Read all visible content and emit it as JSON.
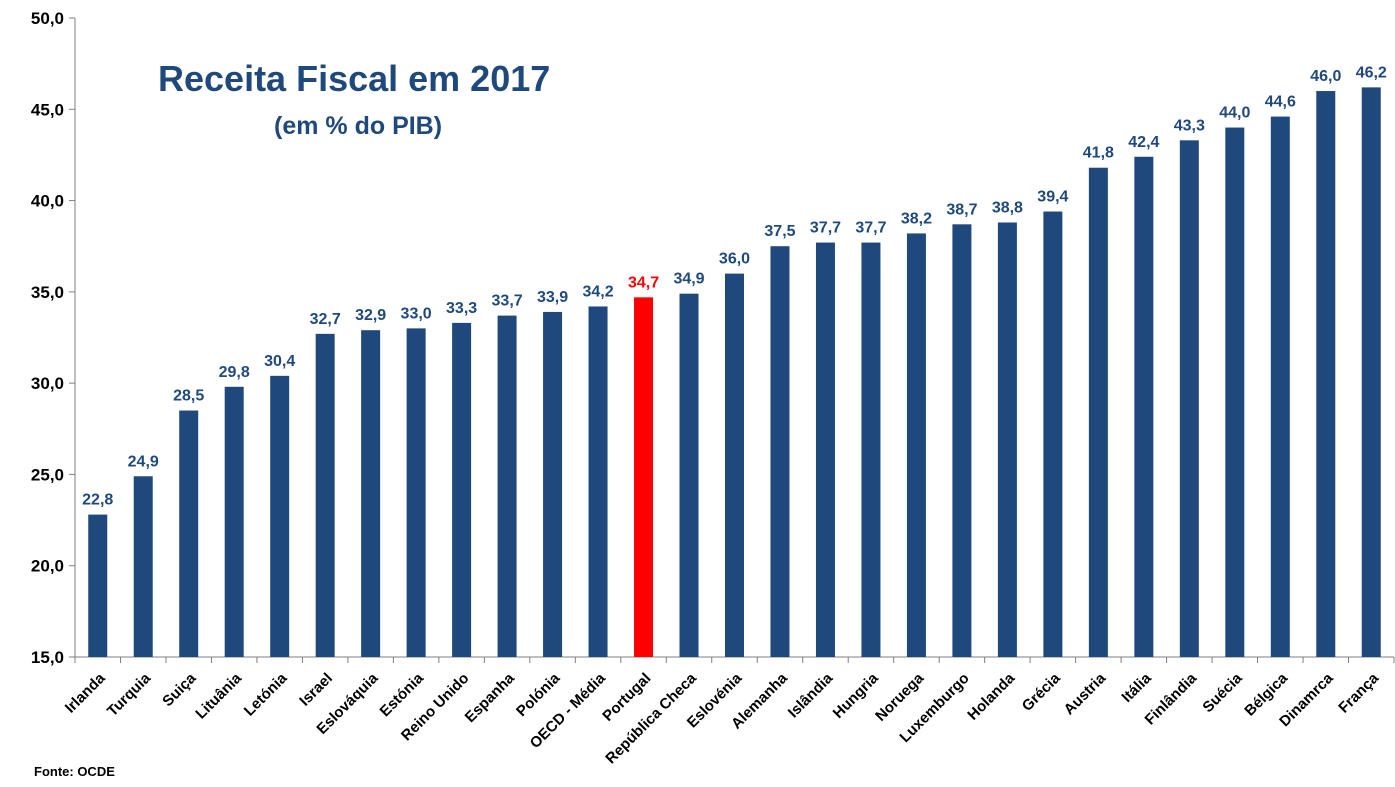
{
  "chart_data": {
    "type": "bar",
    "title": "Receita Fiscal em 2017",
    "subtitle": "(em % do PIB)",
    "source": "Fonte: OCDE",
    "categories": [
      "Irlanda",
      "Turquia",
      "Suiça",
      "Lituânia",
      "Letónia",
      "Israel",
      "Eslováquia",
      "Estónia",
      "Reino Unido",
      "Espanha",
      "Polónia",
      "OECD - Média",
      "Portugal",
      "República Checa",
      "Eslovénia",
      "Alemanha",
      "Islândia",
      "Hungria",
      "Noruega",
      "Luxemburgo",
      "Holanda",
      "Grécia",
      "Austria",
      "Itália",
      "Finlândia",
      "Suécia",
      "Bélgica",
      "Dinamrca",
      "França"
    ],
    "values": [
      22.8,
      24.9,
      28.5,
      29.8,
      30.4,
      32.7,
      32.9,
      33.0,
      33.3,
      33.7,
      33.9,
      34.2,
      34.7,
      34.9,
      36.0,
      37.5,
      37.7,
      37.7,
      38.2,
      38.7,
      38.8,
      39.4,
      41.8,
      42.4,
      43.3,
      44.0,
      44.6,
      46.0,
      46.2
    ],
    "value_labels": [
      "22,8",
      "24,9",
      "28,5",
      "29,8",
      "30,4",
      "32,7",
      "32,9",
      "33,0",
      "33,3",
      "33,7",
      "33,9",
      "34,2",
      "34,7",
      "34,9",
      "36,0",
      "37,5",
      "37,7",
      "37,7",
      "38,2",
      "38,7",
      "38,8",
      "39,4",
      "41,8",
      "42,4",
      "43,3",
      "44,0",
      "44,6",
      "46,0",
      "46,2"
    ],
    "ylim": [
      15,
      50
    ],
    "yticks": [
      15,
      20,
      25,
      30,
      35,
      40,
      45,
      50
    ],
    "ytick_labels": [
      "15,0",
      "20,0",
      "25,0",
      "30,0",
      "35,0",
      "40,0",
      "45,0",
      "50,0"
    ],
    "grid": false,
    "legend": "none",
    "bar_color": "#1f497d",
    "highlight_category": "Portugal",
    "highlight_color": "#ff0000"
  }
}
